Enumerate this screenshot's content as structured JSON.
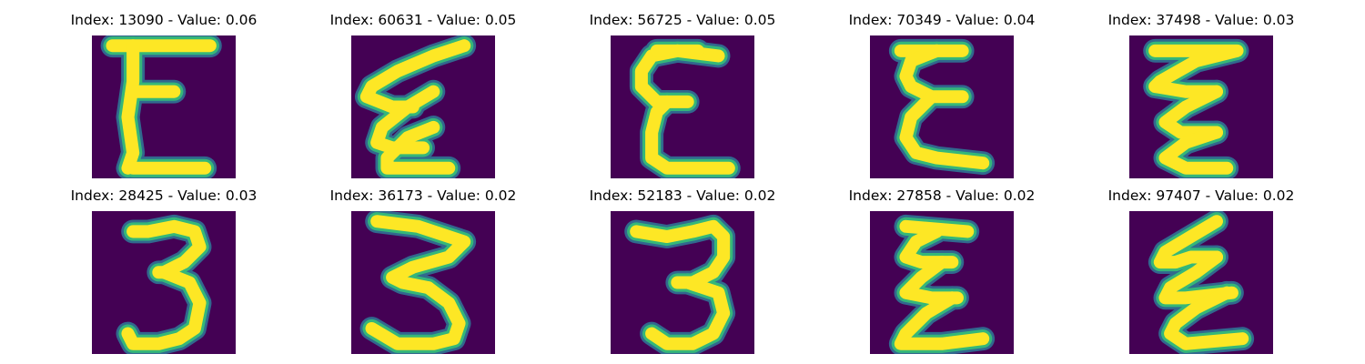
{
  "colors": {
    "background": "#440154",
    "stroke_core": "#fde725",
    "stroke_mid": "#35b779",
    "stroke_edge": "#31688e"
  },
  "grid": [
    {
      "title": "Index: 13090 - Value: 0.06",
      "glyph": "E",
      "strokes": [
        [
          [
            4,
            2
          ],
          [
            23,
            2
          ]
        ],
        [
          [
            8,
            2
          ],
          [
            8,
            9
          ],
          [
            7,
            16
          ],
          [
            8,
            23
          ],
          [
            7,
            26
          ]
        ],
        [
          [
            8,
            11
          ],
          [
            16,
            11
          ]
        ],
        [
          [
            8,
            26
          ],
          [
            22,
            26
          ]
        ]
      ]
    },
    {
      "title": "Index: 60631 - Value: 0.05",
      "glyph": "Σ",
      "strokes": [
        [
          [
            22,
            2
          ],
          [
            16,
            4
          ],
          [
            9,
            7
          ],
          [
            4,
            10
          ],
          [
            3,
            12
          ],
          [
            8,
            14
          ],
          [
            12,
            14
          ]
        ],
        [
          [
            16,
            11
          ],
          [
            11,
            14
          ],
          [
            6,
            18
          ],
          [
            5,
            21
          ],
          [
            8,
            22
          ],
          [
            14,
            22
          ]
        ],
        [
          [
            16,
            18
          ],
          [
            11,
            20
          ],
          [
            7,
            24
          ],
          [
            7,
            26
          ],
          [
            13,
            26
          ],
          [
            19,
            26
          ]
        ]
      ]
    },
    {
      "title": "Index: 56725 - Value: 0.05",
      "glyph": "E",
      "strokes": [
        [
          [
            21,
            4
          ],
          [
            13,
            3
          ],
          [
            8,
            4
          ],
          [
            6,
            7
          ],
          [
            6,
            10
          ],
          [
            9,
            13
          ],
          [
            15,
            13
          ]
        ],
        [
          [
            11,
            13
          ],
          [
            9,
            15
          ],
          [
            8,
            19
          ],
          [
            8,
            24
          ],
          [
            11,
            26
          ],
          [
            23,
            26
          ]
        ],
        [
          [
            9,
            3
          ],
          [
            17,
            3
          ]
        ]
      ]
    },
    {
      "title": "Index: 70349 - Value: 0.04",
      "glyph": "Σ",
      "strokes": [
        [
          [
            6,
            3
          ],
          [
            18,
            3
          ]
        ],
        [
          [
            13,
            3
          ],
          [
            8,
            5
          ],
          [
            7,
            8
          ],
          [
            8,
            10
          ],
          [
            12,
            12
          ],
          [
            18,
            12
          ]
        ],
        [
          [
            12,
            12
          ],
          [
            8,
            16
          ],
          [
            7,
            20
          ],
          [
            9,
            23
          ],
          [
            13,
            24
          ],
          [
            22,
            25
          ]
        ]
      ]
    },
    {
      "title": "Index: 37498 - Value: 0.03",
      "glyph": "Σ",
      "strokes": [
        [
          [
            5,
            3
          ],
          [
            21,
            3
          ],
          [
            13,
            5
          ],
          [
            6,
            9
          ],
          [
            5,
            10
          ],
          [
            11,
            11
          ],
          [
            17,
            11
          ]
        ],
        [
          [
            17,
            11
          ],
          [
            11,
            14
          ],
          [
            7,
            17
          ],
          [
            10,
            19
          ],
          [
            17,
            19
          ]
        ],
        [
          [
            17,
            19
          ],
          [
            11,
            21
          ],
          [
            7,
            24
          ],
          [
            11,
            26
          ],
          [
            19,
            26
          ]
        ]
      ]
    },
    {
      "title": "Index: 28425 - Value: 0.03",
      "glyph": "3",
      "strokes": [
        [
          [
            8,
            4
          ],
          [
            11,
            4
          ],
          [
            16,
            3
          ],
          [
            20,
            4
          ],
          [
            21,
            7
          ],
          [
            18,
            10
          ],
          [
            14,
            12
          ],
          [
            13,
            12
          ]
        ],
        [
          [
            14,
            12
          ],
          [
            19,
            14
          ],
          [
            21,
            18
          ],
          [
            20,
            23
          ],
          [
            17,
            25
          ],
          [
            13,
            26
          ],
          [
            8,
            26
          ],
          [
            7,
            24
          ]
        ]
      ]
    },
    {
      "title": "Index: 36173 - Value: 0.02",
      "glyph": "3",
      "strokes": [
        [
          [
            5,
            2
          ],
          [
            13,
            3
          ],
          [
            22,
            6
          ],
          [
            19,
            9
          ],
          [
            12,
            11
          ],
          [
            8,
            13
          ],
          [
            10,
            14
          ],
          [
            15,
            15
          ]
        ],
        [
          [
            15,
            15
          ],
          [
            19,
            18
          ],
          [
            21,
            22
          ],
          [
            20,
            25
          ],
          [
            16,
            26
          ],
          [
            9,
            26
          ],
          [
            4,
            23
          ]
        ]
      ]
    },
    {
      "title": "Index: 52183 - Value: 0.02",
      "glyph": "3",
      "strokes": [
        [
          [
            5,
            4
          ],
          [
            11,
            5
          ],
          [
            16,
            4
          ],
          [
            20,
            3
          ],
          [
            22,
            5
          ],
          [
            22,
            9
          ],
          [
            20,
            12
          ],
          [
            16,
            14
          ],
          [
            13,
            14
          ]
        ],
        [
          [
            15,
            14
          ],
          [
            21,
            16
          ],
          [
            22,
            20
          ],
          [
            20,
            24
          ],
          [
            16,
            26
          ],
          [
            11,
            26
          ],
          [
            8,
            24
          ]
        ]
      ]
    },
    {
      "title": "Index: 27858 - Value: 0.02",
      "glyph": "Σ",
      "strokes": [
        [
          [
            7,
            3
          ],
          [
            19,
            4
          ]
        ],
        [
          [
            13,
            4
          ],
          [
            9,
            6
          ],
          [
            7,
            9
          ],
          [
            10,
            10
          ],
          [
            16,
            10
          ]
        ],
        [
          [
            14,
            10
          ],
          [
            10,
            13
          ],
          [
            7,
            16
          ],
          [
            12,
            17
          ],
          [
            17,
            17
          ]
        ],
        [
          [
            16,
            17
          ],
          [
            11,
            20
          ],
          [
            7,
            24
          ],
          [
            6,
            26
          ],
          [
            14,
            26
          ],
          [
            22,
            25
          ]
        ]
      ]
    },
    {
      "title": "Index: 97407 - Value: 0.02",
      "glyph": "Σ",
      "strokes": [
        [
          [
            17,
            2
          ],
          [
            12,
            5
          ],
          [
            7,
            8
          ],
          [
            6,
            10
          ],
          [
            9,
            10
          ],
          [
            12,
            9
          ],
          [
            17,
            9
          ]
        ],
        [
          [
            17,
            9
          ],
          [
            13,
            12
          ],
          [
            8,
            15
          ],
          [
            7,
            17
          ],
          [
            11,
            17
          ],
          [
            20,
            16
          ]
        ],
        [
          [
            19,
            16
          ],
          [
            13,
            19
          ],
          [
            9,
            22
          ],
          [
            8,
            24
          ],
          [
            11,
            26
          ],
          [
            22,
            25
          ]
        ]
      ]
    }
  ]
}
